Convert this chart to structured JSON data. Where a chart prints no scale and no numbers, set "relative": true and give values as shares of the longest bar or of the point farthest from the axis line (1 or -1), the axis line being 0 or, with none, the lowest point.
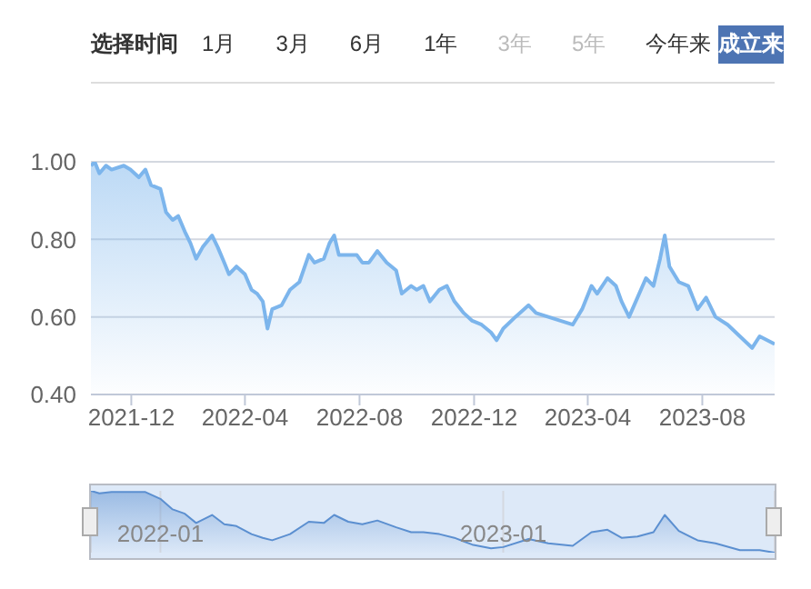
{
  "chart_data": [
    {
      "type": "area",
      "annotations": [
        "选择时间",
        "1月",
        "3月",
        "6月",
        "1年",
        "3年",
        "5年",
        "今年来",
        "成立来"
      ],
      "x": [
        "2021-10-19",
        "2021-10-23",
        "2021-10-28",
        "2021-11-04",
        "2021-11-10",
        "2021-11-23",
        "2021-11-30",
        "2021-12-09",
        "2021-12-16",
        "2021-12-22",
        "2022-01-01",
        "2022-01-07",
        "2022-01-14",
        "2022-01-20",
        "2022-01-27",
        "2022-02-02",
        "2022-02-08",
        "2022-02-15",
        "2022-02-25",
        "2022-03-03",
        "2022-03-10",
        "2022-03-15",
        "2022-03-23",
        "2022-04-01",
        "2022-04-08",
        "2022-04-14",
        "2022-04-20",
        "2022-04-25",
        "2022-04-30",
        "2022-05-10",
        "2022-05-19",
        "2022-05-29",
        "2022-06-08",
        "2022-06-14",
        "2022-06-24",
        "2022-06-30",
        "2022-07-05",
        "2022-07-10",
        "2022-07-20",
        "2022-07-29",
        "2022-08-04",
        "2022-08-11",
        "2022-08-20",
        "2022-08-30",
        "2022-09-09",
        "2022-09-15",
        "2022-09-25",
        "2022-10-01",
        "2022-10-08",
        "2022-10-15",
        "2022-10-25",
        "2022-11-02",
        "2022-11-10",
        "2022-11-20",
        "2022-11-29",
        "2022-12-09",
        "2022-12-19",
        "2022-12-25",
        "2023-01-01",
        "2023-01-14",
        "2023-01-28",
        "2023-02-05",
        "2023-02-18",
        "2023-03-03",
        "2023-03-16",
        "2023-03-26",
        "2023-04-05",
        "2023-04-11",
        "2023-04-22",
        "2023-05-01",
        "2023-05-07",
        "2023-05-15",
        "2023-05-24",
        "2023-06-02",
        "2023-06-10",
        "2023-06-17",
        "2023-06-22",
        "2023-06-27",
        "2023-07-07",
        "2023-07-17",
        "2023-07-27",
        "2023-08-05",
        "2023-08-15",
        "2023-08-28",
        "2023-09-10",
        "2023-09-23",
        "2023-10-01",
        "2023-10-09",
        "2023-10-17"
      ],
      "values": [
        0.99,
        1.0,
        0.97,
        0.99,
        0.98,
        0.99,
        0.98,
        0.96,
        0.98,
        0.94,
        0.93,
        0.87,
        0.85,
        0.86,
        0.82,
        0.79,
        0.75,
        0.78,
        0.81,
        0.78,
        0.74,
        0.71,
        0.73,
        0.71,
        0.67,
        0.66,
        0.64,
        0.57,
        0.62,
        0.63,
        0.67,
        0.69,
        0.76,
        0.74,
        0.75,
        0.79,
        0.81,
        0.76,
        0.76,
        0.76,
        0.74,
        0.74,
        0.77,
        0.74,
        0.72,
        0.66,
        0.68,
        0.67,
        0.68,
        0.64,
        0.67,
        0.68,
        0.64,
        0.61,
        0.59,
        0.58,
        0.56,
        0.54,
        0.57,
        0.6,
        0.63,
        0.61,
        0.6,
        0.59,
        0.58,
        0.62,
        0.68,
        0.66,
        0.7,
        0.68,
        0.64,
        0.6,
        0.65,
        0.7,
        0.68,
        0.75,
        0.81,
        0.73,
        0.69,
        0.68,
        0.62,
        0.65,
        0.6,
        0.58,
        0.55,
        0.52,
        0.55,
        0.54,
        0.53
      ],
      "color": "#7cb5ec",
      "xlim": [
        "2021-10-19",
        "2023-10-17"
      ],
      "xticks": [
        "2021-12",
        "2022-04",
        "2022-08",
        "2022-12",
        "2023-04",
        "2023-08"
      ],
      "ylim": [
        0.4,
        1.0
      ],
      "yticks": [
        {
          "value": 0.4,
          "label": "0.40"
        },
        {
          "value": 0.6,
          "label": "0.60"
        },
        {
          "value": 0.8,
          "label": "0.80"
        },
        {
          "value": 1.0,
          "label": "1.00"
        }
      ],
      "grid": "y"
    },
    {
      "type": "area",
      "relative": true,
      "x": [
        "2021-10-19",
        "2021-10-28",
        "2021-11-10",
        "2021-11-30",
        "2021-12-16",
        "2022-01-01",
        "2022-01-14",
        "2022-01-27",
        "2022-02-08",
        "2022-02-25",
        "2022-03-10",
        "2022-03-23",
        "2022-04-08",
        "2022-04-20",
        "2022-04-30",
        "2022-05-19",
        "2022-06-08",
        "2022-06-24",
        "2022-07-05",
        "2022-07-20",
        "2022-08-04",
        "2022-08-20",
        "2022-09-09",
        "2022-09-25",
        "2022-10-08",
        "2022-10-25",
        "2022-11-10",
        "2022-11-29",
        "2022-12-19",
        "2023-01-01",
        "2023-01-28",
        "2023-02-18",
        "2023-03-16",
        "2023-04-05",
        "2023-04-22",
        "2023-05-07",
        "2023-05-24",
        "2023-06-10",
        "2023-06-22",
        "2023-07-07",
        "2023-07-27",
        "2023-08-15",
        "2023-09-10",
        "2023-10-01",
        "2023-10-17"
      ],
      "values": [
        1,
        0.96,
        0.98,
        0.98,
        0.98,
        0.87,
        0.7,
        0.63,
        0.48,
        0.61,
        0.46,
        0.43,
        0.3,
        0.24,
        0.2,
        0.3,
        0.5,
        0.48,
        0.61,
        0.5,
        0.46,
        0.52,
        0.41,
        0.33,
        0.33,
        0.3,
        0.24,
        0.13,
        0.07,
        0.09,
        0.22,
        0.15,
        0.11,
        0.33,
        0.37,
        0.24,
        0.26,
        0.33,
        0.61,
        0.35,
        0.2,
        0.15,
        0.04,
        0.04,
        0
      ],
      "color": "#5b8fd0",
      "xlim": [
        "2021-10-19",
        "2023-10-17"
      ],
      "xticks": [
        "2022-01",
        "2023-01"
      ],
      "tick_labels": "x",
      "grid": "x"
    }
  ]
}
